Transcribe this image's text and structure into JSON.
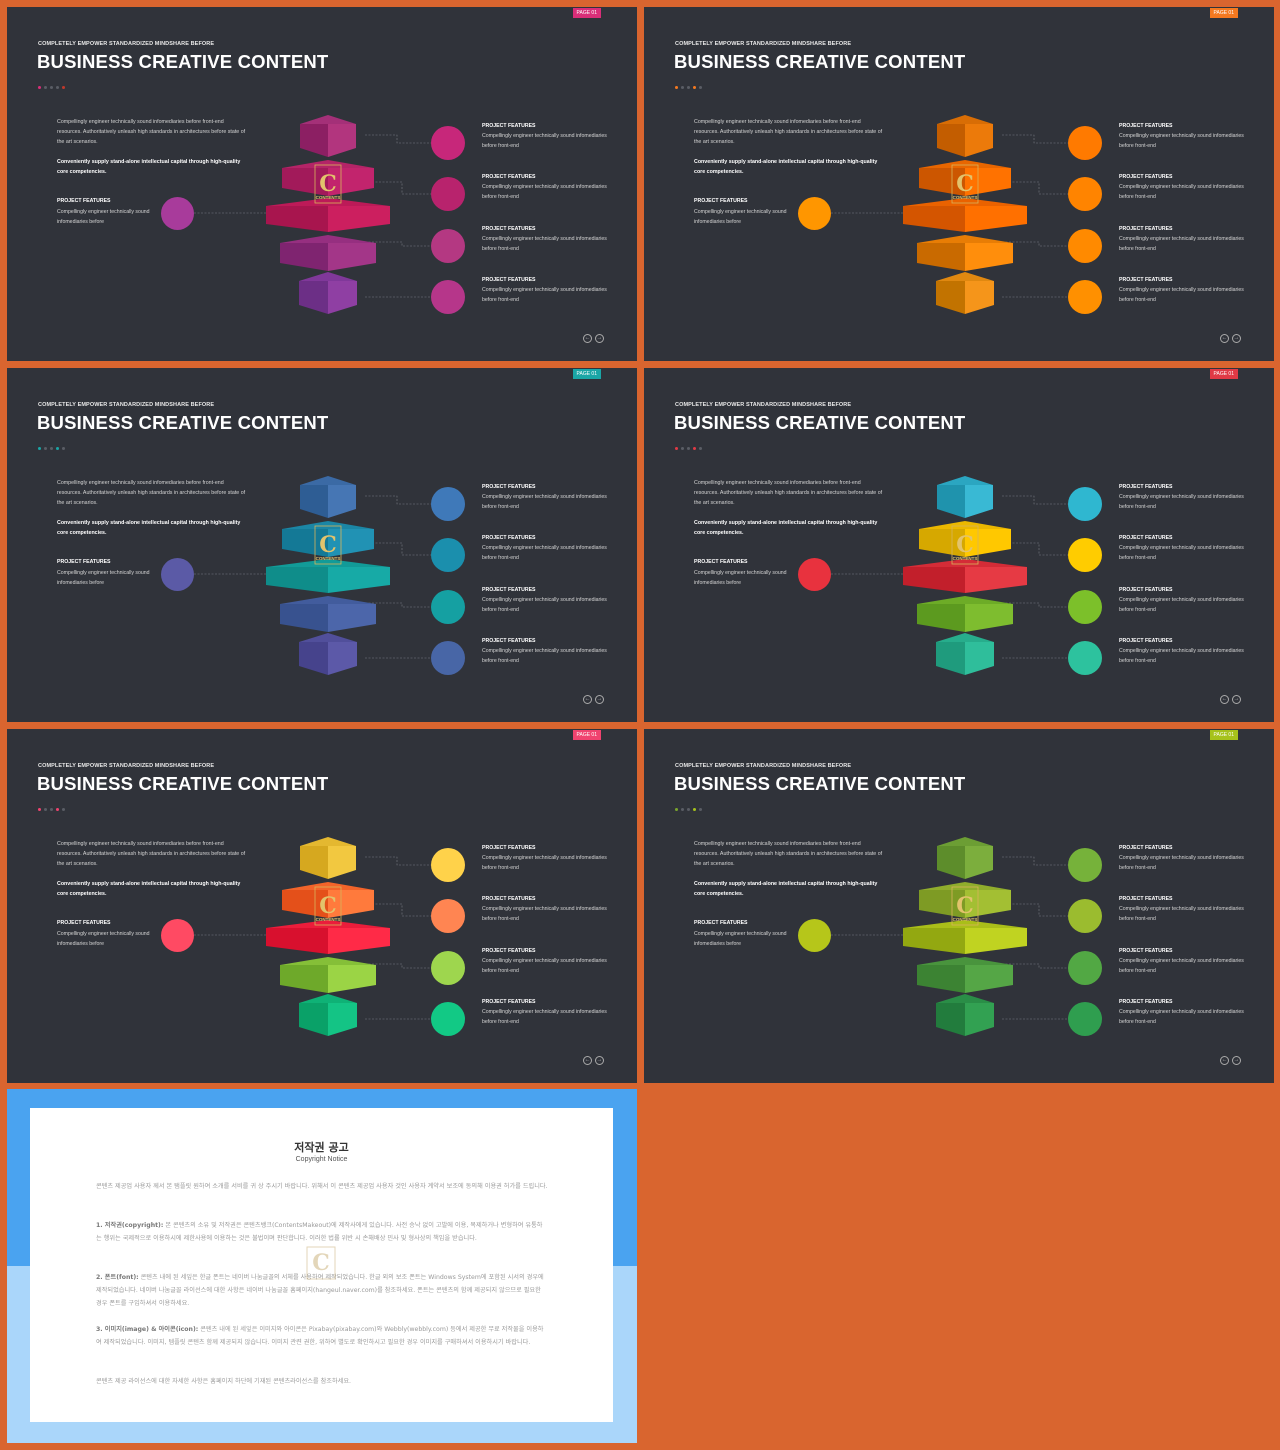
{
  "slides": [
    {
      "badge": "PAGE 01",
      "badge_color": "#d92e78",
      "dot_colors": [
        "#d92e78",
        "#5a5d65",
        "#5a5d65",
        "#5a5d65",
        "#c0392b"
      ],
      "circle_colors": [
        "#c7277a",
        "#b8236d",
        "#b43882",
        "#b6368a",
        "#a83b9b"
      ],
      "tiers": [
        {
          "left": "#8c1f63",
          "right": "#b2357e",
          "top": "#a43078"
        },
        {
          "left": "#a21a5a",
          "right": "#c2246d",
          "top": "#b42467"
        },
        {
          "left": "#a8154e",
          "right": "#cc1f5f",
          "top": "#bd1a58"
        },
        {
          "left": "#7f2470",
          "right": "#a33688",
          "top": "#962f80"
        },
        {
          "left": "#6c2f86",
          "right": "#8f3fa3",
          "top": "#80389a"
        }
      ]
    },
    {
      "badge": "PAGE 01",
      "badge_color": "#f47920",
      "dot_colors": [
        "#f47920",
        "#5a5d65",
        "#5a5d65",
        "#f47920",
        "#5a5d65"
      ],
      "circle_colors": [
        "#ff7a00",
        "#ff8400",
        "#ff8a00",
        "#ff9000",
        "#ff9600"
      ],
      "tiers": [
        {
          "left": "#c35d00",
          "right": "#ec7a0a",
          "top": "#d86d05"
        },
        {
          "left": "#cc5600",
          "right": "#ff7200",
          "top": "#e86600"
        },
        {
          "left": "#d45500",
          "right": "#ff7000",
          "top": "#ea6200"
        },
        {
          "left": "#c96a00",
          "right": "#ff8e0c",
          "top": "#e87d05"
        },
        {
          "left": "#c27300",
          "right": "#f5951a",
          "top": "#e08810"
        }
      ]
    },
    {
      "badge": "PAGE 01",
      "badge_color": "#1aa6a6",
      "dot_colors": [
        "#1aa6a6",
        "#5a5d65",
        "#5a5d65",
        "#1aa6a6",
        "#5a5d65"
      ],
      "circle_colors": [
        "#3f79b9",
        "#1b8fad",
        "#15a0a2",
        "#4866a6",
        "#5b5aa6"
      ],
      "tiers": [
        {
          "left": "#2e5d94",
          "right": "#4676b4",
          "top": "#3b6aa5"
        },
        {
          "left": "#147996",
          "right": "#2192b4",
          "top": "#1b86a5"
        },
        {
          "left": "#0f8d8a",
          "right": "#17aaa6",
          "top": "#129b98"
        },
        {
          "left": "#38528f",
          "right": "#4c66aa",
          "top": "#425c9d"
        },
        {
          "left": "#46438c",
          "right": "#5c59a8",
          "top": "#514f9b"
        }
      ]
    },
    {
      "badge": "PAGE 01",
      "badge_color": "#e03a45",
      "dot_colors": [
        "#e03a45",
        "#5a5d65",
        "#5a5d65",
        "#e03a45",
        "#5a5d65"
      ],
      "circle_colors": [
        "#2fb7d0",
        "#ffcc00",
        "#7cc02a",
        "#2dc29e",
        "#e8323e"
      ],
      "tiers": [
        {
          "left": "#1f93ad",
          "right": "#39b9d4",
          "top": "#2ba6c1"
        },
        {
          "left": "#d6a800",
          "right": "#ffc800",
          "top": "#ebb800"
        },
        {
          "left": "#c21f2b",
          "right": "#e63a44",
          "top": "#d42c37"
        },
        {
          "left": "#5c9a1f",
          "right": "#7ebd2f",
          "top": "#6dac27"
        },
        {
          "left": "#1f9b7d",
          "right": "#2fbe9b",
          "top": "#27ad8c"
        }
      ]
    },
    {
      "badge": "PAGE 01",
      "badge_color": "#f0436f",
      "dot_colors": [
        "#f0436f",
        "#5a5d65",
        "#5a5d65",
        "#f0436f",
        "#5a5d65"
      ],
      "circle_colors": [
        "#ffd24a",
        "#ff8552",
        "#9ed64e",
        "#12c985",
        "#ff4a63"
      ],
      "tiers": [
        {
          "left": "#d6a81f",
          "right": "#f2c840",
          "top": "#e4b830"
        },
        {
          "left": "#e4501a",
          "right": "#ff7a3c",
          "top": "#f2642a"
        },
        {
          "left": "#d8102e",
          "right": "#ff2a47",
          "top": "#eb1d3b"
        },
        {
          "left": "#6ea92a",
          "right": "#9bd445",
          "top": "#85bf38"
        },
        {
          "left": "#0aa168",
          "right": "#14c485",
          "top": "#0fb276"
        }
      ]
    },
    {
      "badge": "PAGE 01",
      "badge_color": "#a6c21b",
      "dot_colors": [
        "#7aa52d",
        "#5a5d65",
        "#5a5d65",
        "#a6c21b",
        "#5a5d65"
      ],
      "circle_colors": [
        "#76b23a",
        "#9bbc2f",
        "#52a844",
        "#2f9e4f",
        "#b6c61a"
      ],
      "tiers": [
        {
          "left": "#5d8d2b",
          "right": "#7cae3d",
          "top": "#6c9e34"
        },
        {
          "left": "#7e9b24",
          "right": "#a3bf33",
          "top": "#90ad2c"
        },
        {
          "left": "#93a811",
          "right": "#c0d321",
          "top": "#aabe19"
        },
        {
          "left": "#3c8333",
          "right": "#55a646",
          "top": "#49943d"
        },
        {
          "left": "#227c3d",
          "right": "#32a152",
          "top": "#2a8e47"
        }
      ]
    }
  ],
  "common": {
    "kicker": "COMPLETELY EMPOWER STANDARDIZED  MINDSHARE  BEFORE",
    "title": "BUSINESS CREATIVE CONTENT",
    "body": "Compellingly engineer technically sound infomediaries before front-end resources. Authoritatively unleash high standards in architectures before state of the art scenarios.",
    "bold": "Conveniently supply stand-alone intellectual capital through high-quality core competencies.",
    "left_feature_title": "PROJECT FEATURES",
    "left_feature_desc": "Compellingly engineer technically sound infomediaries before",
    "feature_title": "PROJECT FEATURES",
    "feature_desc": "Compellingly engineer technically sound infomediaries before front-end",
    "logo_letter": "C",
    "logo_caption": "CONTENTS",
    "nav_prev": "←",
    "nav_next": "→"
  },
  "copyright": {
    "title": "저작권 공고",
    "subtitle": "Copyright Notice",
    "intro": "콘텐츠 제공업 사용자 께서 본 탬플릿 원하여 소개를 서비를 귀 상 주시기 바랍니다. 위해서 이 콘텐츠 제공업 사용자 것인 사용자 계약서 보조에 동의해 이용권 허가를 드립니다.",
    "p1_head": "1. 저작권(copyright):",
    "p1": " 본 콘텐츠의 소유 및 저작권은 콘텐츠뱅크(ContentsMakeout)에 제작사에게 있습니다. 사전 승낙 없이 고발에 이용, 복제하거나 변형하여 유통하는 행위는 국제적으로 이용하시에 제한사용에 이용하는 것은 불법이며 판단합니다. 이러한 법률 위반 시 손해배상 민사 및 형사상의 책임을 받습니다.",
    "p2_head": "2. 폰트(font):",
    "p2": " 콘텐츠 내에 된 세잎은 한글 폰트는 네이버 나눔글꼴의 서체를 사용하여 제작되었습니다. 한글 외의 보조 폰트는 Windows System에 포함된 시서의 경우에 제작되었습니다. 네이버 나눔글꼴 라이선스에 대한 사항은 네이버 나눔글꼴 홈페이지(hangeul.naver.com)를 참조하세요. 폰트는 콘텐츠의 함께 제공되지 않으므로 필요한 경우 폰트를 구입하셔서 이용하세요.",
    "p3_head": "3. 이미지(image) & 아이콘(icon):",
    "p3": " 콘텐츠 내에 된 세잎은 이미지와 아이콘은 Pixabay(pixabay.com)와 Webbly(webbly.com) 등에서 제공한 무료 저작물을 이용하여 제작되었습니다. 이미지, 템플릿 콘텐츠 함께 제공되지 않습니다. 이미지 관련 권한, 위하여 별도로 확인하시고 필요한 경우 이미지를 구매하셔서 이용하시기 바랍니다.",
    "outro": "콘텐츠 제공 라이선스에 대한 자세한 사항은 홈페이지 하단에 기재된 콘텐츠라이선스를 참조하세요."
  }
}
